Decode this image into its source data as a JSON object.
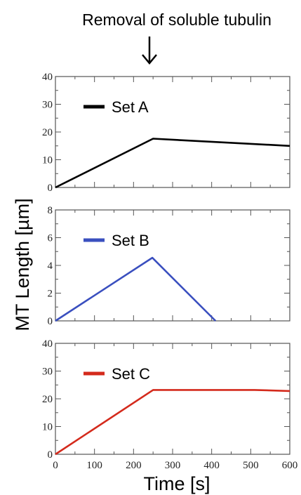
{
  "annotation": {
    "text": "Removal of soluble tubulin"
  },
  "ylabel": "MT Length [µm]",
  "xlabel": "Time [s]",
  "chart_data": [
    {
      "type": "line",
      "xlim": [
        0,
        600
      ],
      "ylim": [
        0,
        40
      ],
      "yticks": [
        0,
        10,
        20,
        30,
        40
      ],
      "xticks": [
        0,
        100,
        200,
        300,
        400,
        500,
        600
      ],
      "show_xtick_labels": false,
      "grid": false,
      "legend": "top-left",
      "series": [
        {
          "name": "Set A",
          "color": "#000000",
          "x": [
            0,
            250,
            600
          ],
          "y": [
            0,
            17.6,
            15
          ]
        }
      ]
    },
    {
      "type": "line",
      "xlim": [
        0,
        600
      ],
      "ylim": [
        0,
        8
      ],
      "yticks": [
        0,
        2,
        4,
        6,
        8
      ],
      "xticks": [
        0,
        100,
        200,
        300,
        400,
        500,
        600
      ],
      "show_xtick_labels": false,
      "grid": false,
      "legend": "top-left",
      "series": [
        {
          "name": "Set B",
          "color": "#3a4fbf",
          "x": [
            0,
            248,
            410
          ],
          "y": [
            0,
            4.55,
            0
          ]
        }
      ]
    },
    {
      "type": "line",
      "xlim": [
        0,
        600
      ],
      "ylim": [
        0,
        40
      ],
      "yticks": [
        0,
        10,
        20,
        30,
        40
      ],
      "xticks": [
        0,
        100,
        200,
        300,
        400,
        500,
        600
      ],
      "show_xtick_labels": true,
      "grid": false,
      "legend": "top-left",
      "series": [
        {
          "name": "Set C",
          "color": "#d42a1c",
          "x": [
            0,
            250,
            510,
            600
          ],
          "y": [
            0,
            23.2,
            23.2,
            22.8
          ]
        }
      ]
    }
  ]
}
